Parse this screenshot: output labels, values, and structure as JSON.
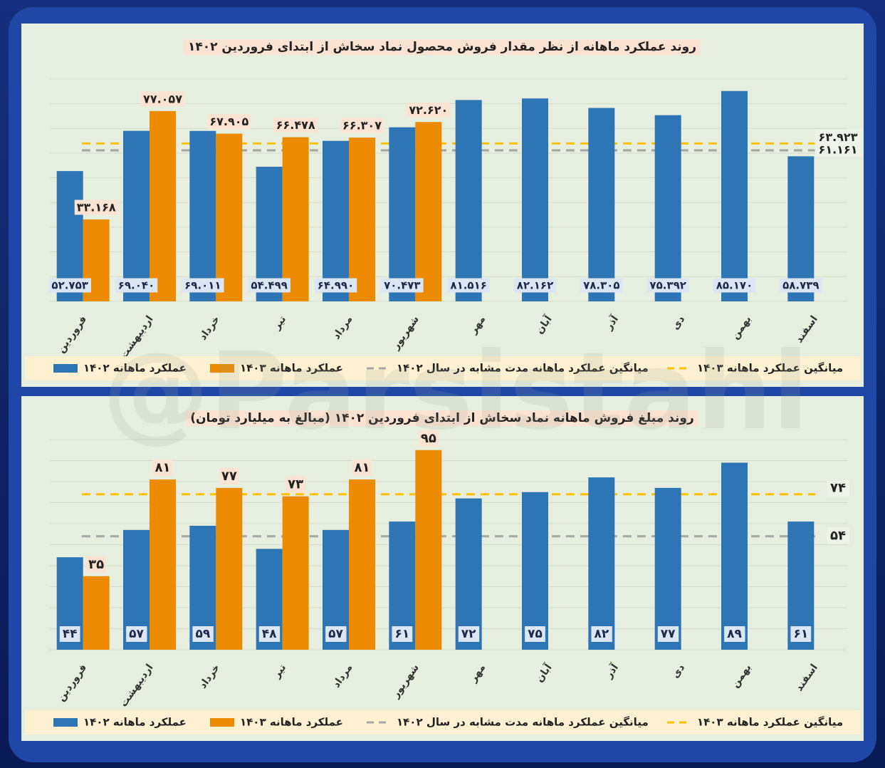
{
  "watermark": "@Parsistahl",
  "chart_data": [
    {
      "type": "bar",
      "title": "روند عملکرد ماهانه از نظر مقدار فروش محصول نماد سخاش از ابتدای فروردین ۱۴۰۲",
      "categories": [
        "فروردین",
        "اردیبهشت",
        "خرداد",
        "تیر",
        "مرداد",
        "شهریور",
        "مهر",
        "آبان",
        "آذر",
        "دی",
        "بهمن",
        "اسفند"
      ],
      "series": [
        {
          "name": "عملکرد ماهانه ۱۴۰۲",
          "color": "#2e75b6",
          "values": [
            52.753,
            69.04,
            69.011,
            54.499,
            64.99,
            70.473,
            81.516,
            82.162,
            78.305,
            75.392,
            85.17,
            58.739
          ],
          "value_labels": [
            "۵۲.۷۵۳",
            "۶۹.۰۴۰",
            "۶۹.۰۱۱",
            "۵۴.۴۹۹",
            "۶۴.۹۹۰",
            "۷۰.۴۷۳",
            "۸۱.۵۱۶",
            "۸۲.۱۶۲",
            "۷۸.۳۰۵",
            "۷۵.۳۹۲",
            "۸۵.۱۷۰",
            "۵۸.۷۳۹"
          ]
        },
        {
          "name": "عملکرد ماهانه ۱۴۰۳",
          "color": "#ed8b00",
          "values": [
            33.168,
            77.057,
            67.905,
            66.478,
            66.307,
            72.62,
            null,
            null,
            null,
            null,
            null,
            null
          ],
          "value_labels": [
            "۳۳.۱۶۸",
            "۷۷.۰۵۷",
            "۶۷.۹۰۵",
            "۶۶.۴۷۸",
            "۶۶.۳۰۷",
            "۷۲.۶۲۰",
            null,
            null,
            null,
            null,
            null,
            null
          ]
        }
      ],
      "reference_lines": [
        {
          "name": "میانگین عملکرد ماهانه مدت مشابه در سال ۱۴۰۲",
          "color": "#a6a6a6",
          "value": 61.161,
          "value_label": "۶۱.۱۶۱"
        },
        {
          "name": "میانگین عملکرد ماهانه ۱۴۰۳",
          "color": "#ffc000",
          "value": 63.923,
          "value_label": "۶۳.۹۲۳"
        }
      ],
      "ylim": [
        0,
        90
      ],
      "yticks": [
        0,
        10,
        20,
        30,
        40,
        50,
        60,
        70,
        80,
        90
      ],
      "grid": true
    },
    {
      "type": "bar",
      "title": "روند مبلغ فروش ماهانه نماد سخاش از ابتدای فروردین ۱۴۰۲ (مبالغ به میلیارد تومان)",
      "categories": [
        "فروردین",
        "اردیبهشت",
        "خرداد",
        "تیر",
        "مرداد",
        "شهریور",
        "مهر",
        "آبان",
        "آذر",
        "دی",
        "بهمن",
        "اسفند"
      ],
      "series": [
        {
          "name": "عملکرد ماهانه ۱۴۰۲",
          "color": "#2e75b6",
          "values": [
            44,
            57,
            59,
            48,
            57,
            61,
            72,
            75,
            82,
            77,
            89,
            61
          ],
          "value_labels": [
            "۴۴",
            "۵۷",
            "۵۹",
            "۴۸",
            "۵۷",
            "۶۱",
            "۷۲",
            "۷۵",
            "۸۲",
            "۷۷",
            "۸۹",
            "۶۱"
          ]
        },
        {
          "name": "عملکرد ماهانه ۱۴۰۳",
          "color": "#ed8b00",
          "values": [
            35,
            81,
            77,
            73,
            81,
            95,
            null,
            null,
            null,
            null,
            null,
            null
          ],
          "value_labels": [
            "۳۵",
            "۸۱",
            "۷۷",
            "۷۳",
            "۸۱",
            "۹۵",
            null,
            null,
            null,
            null,
            null,
            null
          ]
        }
      ],
      "reference_lines": [
        {
          "name": "میانگین عملکرد ماهانه مدت مشابه در سال ۱۴۰۲",
          "color": "#a6a6a6",
          "value": 54,
          "value_label": "۵۴"
        },
        {
          "name": "میانگین عملکرد ماهانه ۱۴۰۳",
          "color": "#ffc000",
          "value": 74,
          "value_label": "۷۴"
        }
      ],
      "ylim": [
        0,
        100
      ],
      "yticks": [
        0,
        10,
        20,
        30,
        40,
        50,
        60,
        70,
        80,
        90,
        100
      ],
      "grid": true
    }
  ]
}
